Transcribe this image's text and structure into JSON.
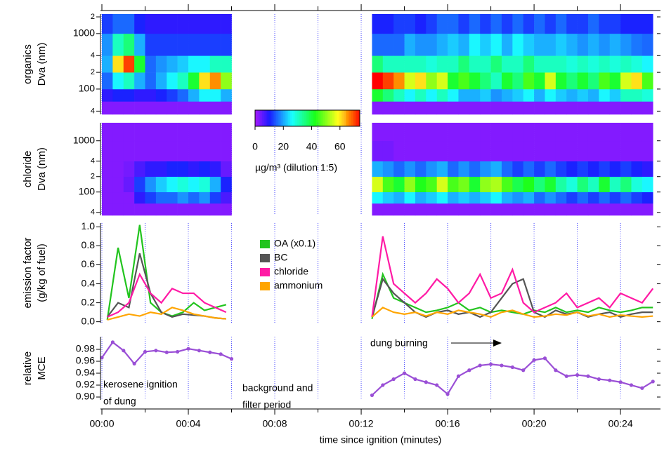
{
  "chart_data": [
    {
      "type": "heatmap",
      "ylabel": [
        "organics",
        "Dva (nm)"
      ],
      "log_y": true,
      "ylim": [
        35,
        2250
      ],
      "yticks": [
        {
          "value": 40,
          "label": "4"
        },
        100,
        {
          "value": 200,
          "label": "2"
        },
        {
          "value": 400,
          "label": "4"
        },
        1000,
        {
          "value": 2000,
          "label": "2"
        }
      ],
      "xlim": [
        0,
        25.85
      ],
      "xbins": [
        0,
        0.5,
        1,
        1.5,
        2,
        2.5,
        3,
        3.5,
        4,
        4.5,
        5,
        5.5,
        6,
        6.5,
        7,
        7.5,
        8,
        8.5,
        9,
        9.5,
        10,
        10.5,
        11,
        11.5,
        12,
        12.5,
        13,
        13.5,
        14,
        14.5,
        15,
        15.5,
        16,
        16.5,
        17,
        17.5,
        18,
        18.5,
        19,
        19.5,
        20,
        20.5,
        21,
        21.5,
        22,
        22.5,
        23,
        23.5,
        24,
        24.5,
        25,
        25.5
      ],
      "ybins": [
        35,
        60,
        100,
        200,
        400,
        1000,
        2250
      ],
      "z": [
        [
          2,
          8,
          15,
          20,
          18,
          12
        ],
        [
          2,
          10,
          25,
          60,
          30,
          15
        ],
        [
          2,
          10,
          30,
          70,
          35,
          15
        ],
        [
          2,
          8,
          20,
          40,
          20,
          10
        ],
        [
          2,
          8,
          15,
          15,
          12,
          8
        ],
        [
          2,
          10,
          20,
          18,
          12,
          8
        ],
        [
          2,
          12,
          25,
          20,
          12,
          8
        ],
        [
          2,
          15,
          30,
          22,
          12,
          8
        ],
        [
          2,
          20,
          40,
          25,
          12,
          8
        ],
        [
          2,
          25,
          60,
          25,
          12,
          8
        ],
        [
          2,
          25,
          65,
          30,
          12,
          8
        ],
        [
          2,
          20,
          50,
          30,
          12,
          8
        ],
        null,
        null,
        null,
        null,
        null,
        null,
        null,
        null,
        null,
        null,
        null,
        null,
        null,
        [
          2,
          40,
          75,
          35,
          15,
          10
        ],
        [
          2,
          35,
          70,
          30,
          15,
          10
        ],
        [
          2,
          30,
          65,
          30,
          15,
          12
        ],
        [
          2,
          25,
          55,
          30,
          20,
          12
        ],
        [
          2,
          30,
          60,
          30,
          18,
          10
        ],
        [
          2,
          25,
          50,
          28,
          18,
          12
        ],
        [
          2,
          30,
          55,
          30,
          20,
          15
        ],
        [
          2,
          25,
          40,
          30,
          22,
          15
        ],
        [
          2,
          20,
          45,
          35,
          20,
          12
        ],
        [
          2,
          20,
          40,
          30,
          25,
          15
        ],
        [
          2,
          22,
          35,
          30,
          22,
          12
        ],
        [
          2,
          18,
          30,
          35,
          25,
          15
        ],
        [
          2,
          20,
          40,
          30,
          20,
          12
        ],
        [
          2,
          22,
          35,
          30,
          25,
          15
        ],
        [
          2,
          25,
          45,
          35,
          22,
          12
        ],
        [
          2,
          20,
          40,
          30,
          20,
          15
        ],
        [
          2,
          25,
          55,
          30,
          20,
          12
        ],
        [
          2,
          22,
          40,
          30,
          22,
          15
        ],
        [
          2,
          20,
          35,
          28,
          20,
          12
        ],
        [
          2,
          22,
          40,
          30,
          18,
          12
        ],
        [
          2,
          20,
          35,
          28,
          20,
          15
        ],
        [
          2,
          25,
          45,
          30,
          18,
          12
        ],
        [
          2,
          22,
          40,
          28,
          20,
          12
        ],
        [
          2,
          30,
          55,
          30,
          18,
          10
        ],
        [
          2,
          30,
          60,
          28,
          16,
          10
        ],
        [
          2,
          28,
          45,
          25,
          15,
          10
        ]
      ],
      "colorbar": {
        "lim": [
          0,
          74
        ],
        "ticks": [
          0,
          20,
          40,
          60
        ],
        "label": "µg/m³ (dilution 1:5)"
      }
    },
    {
      "type": "heatmap",
      "ylabel": [
        "chloride",
        "Dva (nm)"
      ],
      "log_y": true,
      "ylim": [
        35,
        2250
      ],
      "yticks": [
        {
          "value": 40,
          "label": "4"
        },
        100,
        {
          "value": 200,
          "label": "2"
        },
        {
          "value": 400,
          "label": "4"
        },
        1000
      ],
      "xlim": [
        0,
        25.85
      ],
      "xbins": [
        0,
        0.5,
        1,
        1.5,
        2,
        2.5,
        3,
        3.5,
        4,
        4.5,
        5,
        5.5,
        6,
        6.5,
        7,
        7.5,
        8,
        8.5,
        9,
        9.5,
        10,
        10.5,
        11,
        11.5,
        12,
        12.5,
        13,
        13.5,
        14,
        14.5,
        15,
        15.5,
        16,
        16.5,
        17,
        17.5,
        18,
        18.5,
        19,
        19.5,
        20,
        20.5,
        21,
        21.5,
        22,
        22.5,
        23,
        23.5,
        24,
        24.5,
        25,
        25.5
      ],
      "ybins": [
        35,
        60,
        100,
        200,
        400,
        1000,
        2250
      ],
      "z": [
        [
          2,
          2,
          2,
          2,
          2,
          2
        ],
        [
          2,
          2,
          2,
          2,
          2,
          2
        ],
        [
          2,
          2,
          4,
          3,
          2,
          2
        ],
        [
          2,
          8,
          12,
          6,
          2,
          2
        ],
        [
          2,
          12,
          18,
          8,
          2,
          2
        ],
        [
          2,
          15,
          22,
          8,
          2,
          2
        ],
        [
          2,
          15,
          25,
          10,
          2,
          2
        ],
        [
          2,
          18,
          28,
          10,
          2,
          2
        ],
        [
          2,
          15,
          25,
          8,
          2,
          2
        ],
        [
          2,
          18,
          28,
          10,
          2,
          2
        ],
        [
          2,
          12,
          20,
          8,
          2,
          2
        ],
        [
          2,
          6,
          10,
          4,
          2,
          2
        ],
        null,
        null,
        null,
        null,
        null,
        null,
        null,
        null,
        null,
        null,
        null,
        null,
        null,
        [
          2,
          25,
          55,
          20,
          3,
          2
        ],
        [
          2,
          22,
          45,
          18,
          3,
          2
        ],
        [
          2,
          20,
          40,
          15,
          2,
          2
        ],
        [
          2,
          25,
          50,
          18,
          2,
          2
        ],
        [
          2,
          20,
          42,
          15,
          2,
          2
        ],
        [
          2,
          22,
          45,
          18,
          2,
          2
        ],
        [
          2,
          25,
          55,
          20,
          2,
          2
        ],
        [
          2,
          20,
          45,
          15,
          2,
          2
        ],
        [
          2,
          22,
          48,
          18,
          2,
          2
        ],
        [
          2,
          20,
          40,
          15,
          2,
          2
        ],
        [
          2,
          22,
          50,
          18,
          2,
          2
        ],
        [
          2,
          25,
          52,
          20,
          2,
          2
        ],
        [
          2,
          20,
          45,
          15,
          2,
          2
        ],
        [
          2,
          18,
          38,
          12,
          2,
          2
        ],
        [
          2,
          20,
          42,
          15,
          2,
          2
        ],
        [
          2,
          15,
          35,
          12,
          2,
          2
        ],
        [
          2,
          18,
          40,
          15,
          2,
          2
        ],
        [
          2,
          15,
          32,
          12,
          2,
          2
        ],
        [
          2,
          12,
          28,
          10,
          2,
          2
        ],
        [
          2,
          15,
          35,
          12,
          2,
          2
        ],
        [
          2,
          12,
          30,
          10,
          2,
          2
        ],
        [
          2,
          15,
          40,
          12,
          2,
          2
        ],
        [
          2,
          12,
          30,
          10,
          2,
          2
        ],
        [
          2,
          15,
          35,
          12,
          2,
          2
        ],
        [
          2,
          12,
          28,
          10,
          2,
          2
        ],
        [
          2,
          10,
          25,
          8,
          2,
          2
        ]
      ]
    },
    {
      "type": "line",
      "ylabel": [
        "emission factor",
        "(g/kg of fuel)"
      ],
      "ylim": [
        -0.01,
        1.04
      ],
      "yticks": [
        {
          "value": 0,
          "label": "0.0"
        },
        0.2,
        0.4,
        0.6,
        0.8,
        {
          "value": 1,
          "label": "1.0"
        }
      ],
      "xlim": [
        0,
        25.85
      ],
      "x": [
        0.25,
        0.75,
        1.25,
        1.75,
        2.25,
        2.75,
        3.25,
        3.75,
        4.25,
        4.75,
        5.25,
        5.75,
        9,
        12.5,
        13,
        13.5,
        14,
        14.5,
        15,
        15.5,
        16,
        16.5,
        17,
        17.5,
        18,
        18.5,
        19,
        19.5,
        20,
        20.5,
        21,
        21.5,
        22,
        22.5,
        23,
        23.5,
        24,
        24.5,
        25,
        25.5
      ],
      "series": [
        {
          "name": "OA (x0.1)",
          "color": "#22c41e",
          "values": [
            0.02,
            0.78,
            0.25,
            1.02,
            0.2,
            0.1,
            0.06,
            0.1,
            0.2,
            0.12,
            0.15,
            0.18,
            null,
            0.03,
            0.5,
            0.25,
            0.2,
            0.15,
            0.1,
            0.12,
            0.15,
            0.2,
            0.12,
            0.15,
            0.1,
            0.12,
            0.1,
            0.08,
            0.12,
            0.1,
            0.15,
            0.1,
            0.12,
            0.1,
            0.15,
            0.12,
            0.1,
            0.12,
            0.15,
            0.15
          ]
        },
        {
          "name": "BC",
          "color": "#555555",
          "values": [
            0.05,
            0.2,
            0.15,
            0.72,
            0.3,
            0.1,
            0.05,
            0.08,
            0.07,
            0.06,
            0.04,
            0.03,
            null,
            0.05,
            0.45,
            0.3,
            0.2,
            0.1,
            0.05,
            0.1,
            0.12,
            0.08,
            0.1,
            0.05,
            0.1,
            0.25,
            0.4,
            0.45,
            0.1,
            0.05,
            0.12,
            0.08,
            0.1,
            0.05,
            0.08,
            0.1,
            0.05,
            0.08,
            0.1,
            0.1
          ]
        },
        {
          "name": "chloride",
          "color": "#ff1aa5",
          "values": [
            0.05,
            0.1,
            0.2,
            0.5,
            0.3,
            0.2,
            0.35,
            0.3,
            0.3,
            0.2,
            0.15,
            0.1,
            null,
            0.05,
            0.9,
            0.4,
            0.3,
            0.2,
            0.3,
            0.45,
            0.35,
            0.2,
            0.3,
            0.5,
            0.25,
            0.3,
            0.55,
            0.2,
            0.1,
            0.15,
            0.2,
            0.3,
            0.15,
            0.2,
            0.25,
            0.15,
            0.3,
            0.25,
            0.2,
            0.35
          ]
        },
        {
          "name": "ammonium",
          "color": "#ffa500",
          "values": [
            0.02,
            0.05,
            0.08,
            0.06,
            0.1,
            0.08,
            0.15,
            0.12,
            0.08,
            0.06,
            0.04,
            0.03,
            null,
            0.05,
            0.15,
            0.1,
            0.08,
            0.1,
            0.06,
            0.1,
            0.08,
            0.12,
            0.1,
            0.08,
            0.05,
            0.1,
            0.12,
            0.08,
            0.05,
            0.06,
            0.08,
            0.07,
            0.1,
            0.06,
            0.08,
            0.05,
            0.07,
            0.06,
            0.05,
            0.06
          ]
        }
      ]
    },
    {
      "type": "line",
      "markers": true,
      "ylabel": [
        "relative",
        "MCE"
      ],
      "ylim": [
        0.8953,
        1.0012
      ],
      "yticks": [
        {
          "value": 0.9,
          "label": "0.90"
        },
        0.92,
        0.94,
        0.96,
        0.98
      ],
      "xlim": [
        0,
        25.85
      ],
      "xticks": [
        {
          "value": 0,
          "label": "00:00"
        },
        {
          "value": 4,
          "label": "00:04"
        },
        {
          "value": 8,
          "label": "00:08"
        },
        {
          "value": 12,
          "label": "00:12"
        },
        {
          "value": 16,
          "label": "00:16"
        },
        {
          "value": 20,
          "label": "00:20"
        },
        {
          "value": 24,
          "label": "00:24"
        }
      ],
      "xminorticks": [
        2,
        6,
        10,
        14,
        18,
        22
      ],
      "xlabel": "time since ignition (minutes)",
      "x": [
        0,
        0.5,
        1,
        1.5,
        2,
        2.5,
        3,
        3.5,
        4,
        4.5,
        5,
        5.5,
        6,
        9,
        12.5,
        13,
        13.5,
        14,
        14.5,
        15,
        15.5,
        16,
        16.5,
        17,
        17.5,
        18,
        18.5,
        19,
        19.5,
        20,
        20.5,
        21,
        21.5,
        22,
        22.5,
        23,
        23.5,
        24,
        24.5,
        25,
        25.5
      ],
      "series": [
        {
          "color": "#9a4fd6",
          "values": [
            0.966,
            0.992,
            0.978,
            0.956,
            0.976,
            0.978,
            0.975,
            0.976,
            0.981,
            0.978,
            0.975,
            0.972,
            0.964,
            null,
            0.903,
            0.92,
            0.93,
            0.94,
            0.93,
            0.925,
            0.92,
            0.905,
            0.935,
            0.945,
            0.953,
            0.955,
            0.953,
            0.95,
            0.945,
            0.962,
            0.965,
            0.945,
            0.935,
            0.937,
            0.935,
            0.93,
            0.928,
            0.925,
            0.92,
            0.915,
            0.926
          ]
        }
      ],
      "annotations": [
        "kerosene ignition",
        "of dung",
        "background and",
        "filter period",
        "dung burning"
      ]
    }
  ]
}
